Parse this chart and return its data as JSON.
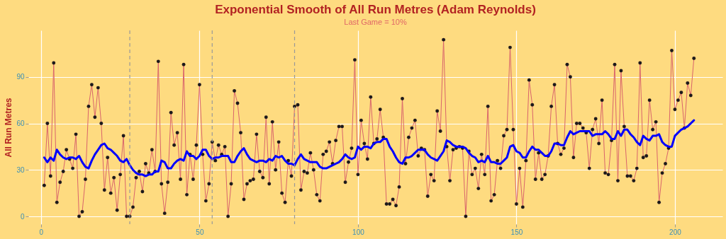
{
  "chart_data": {
    "type": "line",
    "title": "Exponential Smooth of All Run Metres (Adam Reynolds)",
    "subtitle": "Last Game = 10%",
    "ylabel": "All Run Metres",
    "x": [
      1,
      2,
      3,
      4,
      5,
      6,
      7,
      8,
      9,
      10,
      11,
      12,
      13,
      14,
      15,
      16,
      17,
      18,
      19,
      20,
      21,
      22,
      23,
      24,
      25,
      26,
      27,
      28,
      29,
      30,
      31,
      32,
      33,
      34,
      35,
      36,
      37,
      38,
      39,
      40,
      41,
      42,
      43,
      44,
      45,
      46,
      47,
      48,
      49,
      50,
      51,
      52,
      53,
      54,
      55,
      56,
      57,
      58,
      59,
      60,
      61,
      62,
      63,
      64,
      65,
      66,
      67,
      68,
      69,
      70,
      71,
      72,
      73,
      74,
      75,
      76,
      77,
      78,
      79,
      80,
      81,
      82,
      83,
      84,
      85,
      86,
      87,
      88,
      89,
      90,
      91,
      92,
      93,
      94,
      95,
      96,
      97,
      98,
      99,
      100,
      101,
      102,
      103,
      104,
      105,
      106,
      107,
      108,
      109,
      110,
      111,
      112,
      113,
      114,
      115,
      116,
      117,
      118,
      119,
      120,
      121,
      122,
      123,
      124,
      125,
      126,
      127,
      128,
      129,
      130,
      131,
      132,
      133,
      134,
      135,
      136,
      137,
      138,
      139,
      140,
      141,
      142,
      143,
      144,
      145,
      146,
      147,
      148,
      149,
      150,
      151,
      152,
      153,
      154,
      155,
      156,
      157,
      158,
      159,
      160,
      161,
      162,
      163,
      164,
      165,
      166,
      167,
      168,
      169,
      170,
      171,
      172,
      173,
      174,
      175,
      176,
      177,
      178,
      179,
      180,
      181,
      182,
      183,
      184,
      185,
      186,
      187,
      188,
      189,
      190,
      191,
      192,
      193,
      194,
      195,
      196,
      197,
      198,
      199,
      200,
      201,
      202,
      203,
      204,
      205,
      206
    ],
    "series": [
      {
        "color": "#d9646b",
        "marker": "circle",
        "values": [
          20,
          60,
          26,
          99,
          9,
          22,
          29,
          43,
          37,
          31,
          53,
          0,
          3,
          24,
          71,
          85,
          64,
          83,
          60,
          17,
          38,
          15,
          25,
          4,
          27,
          52,
          0,
          0,
          6,
          25,
          29,
          16,
          34,
          28,
          43,
          29,
          100,
          21,
          2,
          22,
          67,
          46,
          54,
          24,
          98,
          14,
          40,
          24,
          46,
          85,
          40,
          10,
          21,
          48,
          36,
          46,
          40,
          45,
          0,
          21,
          81,
          73,
          54,
          11,
          21,
          23,
          24,
          53,
          29,
          25,
          64,
          21,
          61,
          30,
          48,
          15,
          9,
          36,
          26,
          71,
          72,
          17,
          29,
          28,
          41,
          30,
          14,
          10,
          40,
          42,
          48,
          34,
          49,
          58,
          58,
          22,
          35,
          44,
          101,
          27,
          62,
          47,
          37,
          77,
          47,
          50,
          69,
          51,
          8,
          8,
          11,
          7,
          19,
          76,
          34,
          51,
          57,
          62,
          39,
          44,
          43,
          13,
          27,
          23,
          68,
          55,
          114,
          45,
          23,
          43,
          44,
          45,
          44,
          0,
          42,
          27,
          31,
          18,
          40,
          27,
          71,
          10,
          14,
          36,
          31,
          52,
          56,
          109,
          56,
          8,
          31,
          6,
          36,
          88,
          72,
          24,
          41,
          24,
          27,
          39,
          71,
          85,
          47,
          40,
          44,
          98,
          90,
          38,
          60,
          60,
          57,
          54,
          31,
          56,
          63,
          47,
          75,
          28,
          27,
          49,
          98,
          23,
          94,
          58,
          26,
          26,
          23,
          31,
          99,
          38,
          39,
          75,
          56,
          61,
          9,
          28,
          34,
          44,
          107,
          69,
          75,
          80,
          57,
          86,
          78,
          102
        ]
      },
      {
        "color": "#0000ff",
        "marker": "none",
        "values": [
          38,
          35,
          38,
          36,
          43,
          40,
          38,
          37,
          38,
          38,
          37,
          39,
          35,
          32,
          31,
          36,
          40,
          43,
          46,
          47,
          44,
          43,
          41,
          39,
          36,
          35,
          37,
          33,
          30,
          28,
          27,
          27,
          26,
          27,
          27,
          29,
          29,
          36,
          35,
          31,
          31,
          34,
          36,
          37,
          36,
          42,
          39,
          39,
          37,
          39,
          43,
          43,
          39,
          37,
          38,
          38,
          39,
          39,
          39,
          35,
          35,
          39,
          42,
          44,
          40,
          37,
          36,
          35,
          36,
          36,
          35,
          37,
          36,
          39,
          38,
          39,
          36,
          34,
          34,
          33,
          37,
          40,
          37,
          36,
          35,
          35,
          35,
          32,
          31,
          31,
          32,
          33,
          34,
          35,
          37,
          40,
          38,
          37,
          38,
          45,
          43,
          45,
          45,
          44,
          47,
          48,
          48,
          50,
          50,
          45,
          42,
          38,
          35,
          34,
          38,
          38,
          39,
          41,
          43,
          43,
          43,
          40,
          38,
          37,
          36,
          39,
          42,
          49,
          48,
          46,
          45,
          45,
          45,
          44,
          41,
          39,
          38,
          35,
          36,
          35,
          39,
          35,
          35,
          34,
          34,
          36,
          38,
          45,
          46,
          42,
          41,
          38,
          38,
          42,
          45,
          43,
          43,
          41,
          39,
          39,
          42,
          47,
          47,
          46,
          46,
          51,
          55,
          53,
          54,
          55,
          55,
          55,
          55,
          52,
          53,
          53,
          53,
          55,
          53,
          50,
          50,
          55,
          52,
          56,
          56,
          53,
          51,
          48,
          46,
          52,
          50,
          49,
          52,
          52,
          53,
          48,
          46,
          45,
          45,
          52,
          54,
          56,
          57,
          58,
          60,
          62
        ]
      }
    ],
    "xlim": [
      -4,
      215
    ],
    "xticks": [
      0,
      50,
      100,
      150,
      200
    ],
    "ylim": [
      -5,
      120
    ],
    "yticks": [
      0,
      30,
      60,
      90
    ],
    "grid": true,
    "ref_lines": [
      {
        "axis": "x",
        "value": 28,
        "color": "#999999",
        "line_style": "dashed"
      },
      {
        "axis": "x",
        "value": 54,
        "color": "#999999",
        "line_style": "dashed"
      },
      {
        "axis": "x",
        "value": 80,
        "color": "#999999",
        "line_style": "dashed"
      }
    ]
  }
}
